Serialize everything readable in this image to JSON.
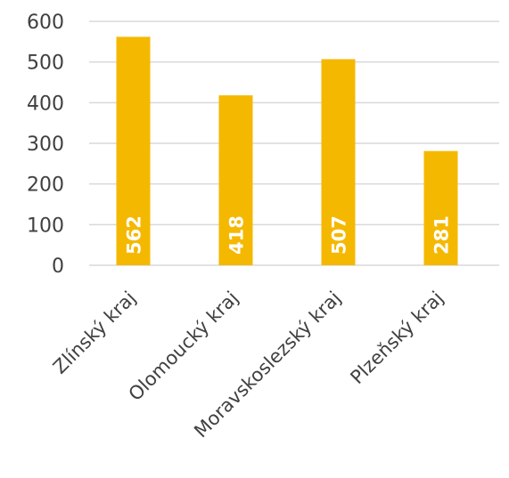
{
  "chart_data": {
    "type": "bar",
    "title": "",
    "xlabel": "",
    "ylabel": "",
    "categories": [
      "Zlínský kraj",
      "Olomoucký kraj",
      "Moravskoslezský kraj",
      "Plzeňský kraj"
    ],
    "values": [
      562,
      418,
      507,
      281
    ],
    "data_labels": [
      "562",
      "418",
      "507",
      "281"
    ],
    "ylim": [
      0,
      600
    ],
    "yticks": [
      0,
      100,
      200,
      300,
      400,
      500,
      600
    ],
    "ytick_labels": [
      "0",
      "100",
      "200",
      "300",
      "400",
      "500",
      "600"
    ],
    "grid": true,
    "legend": "none",
    "bar_color": "#f5b800"
  }
}
